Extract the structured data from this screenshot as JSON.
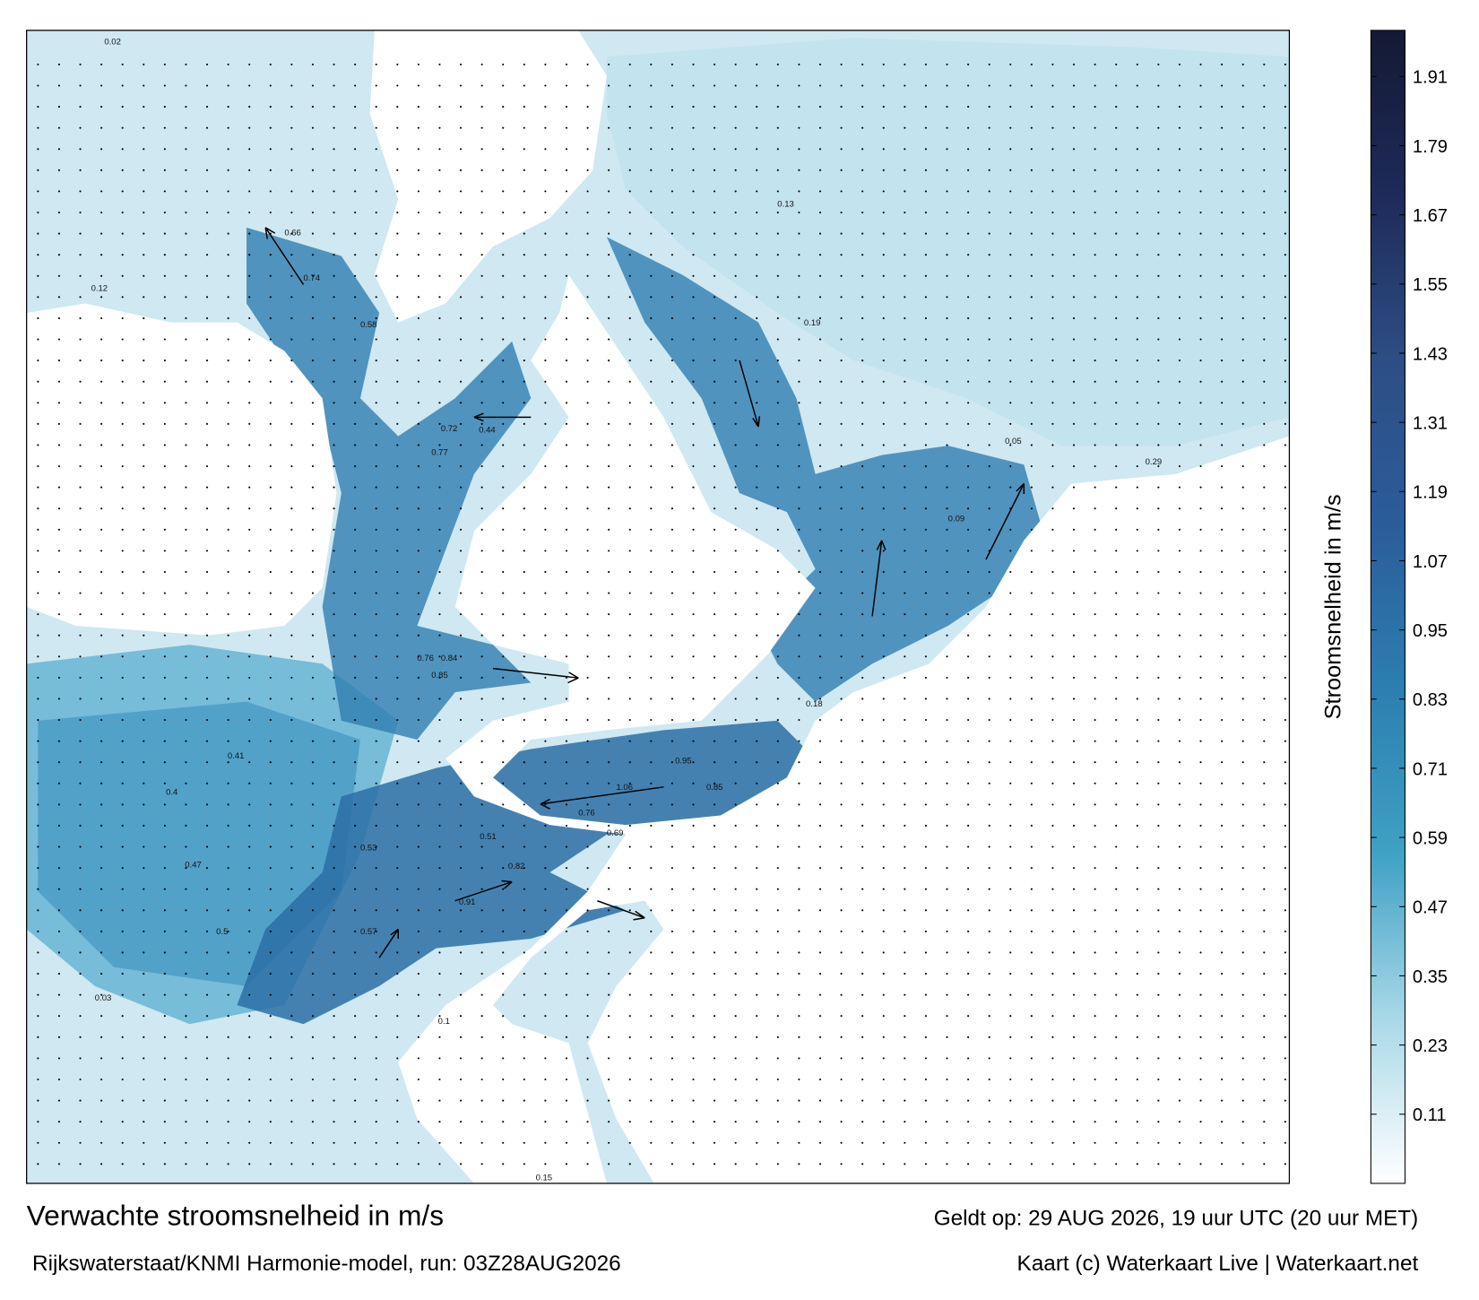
{
  "title": "Verwachte stroomsnelheid in m/s",
  "subtitle": "Rijkswaterstaat/KNMI Harmonie-model, run: 03Z28AUG2026",
  "valid_time": "Geldt op: 29 AUG 2026, 19 uur UTC (20 uur MET)",
  "credit": "Kaart (c) Waterkaart Live | Waterkaart.net",
  "colorbar": {
    "label": "Stroomsnelheid in m/s",
    "range": [
      -0.01,
      1.99
    ],
    "ticks": [
      0.11,
      0.23,
      0.35,
      0.47,
      0.59,
      0.71,
      0.83,
      0.95,
      1.07,
      1.19,
      1.31,
      1.43,
      1.55,
      1.67,
      1.79,
      1.91
    ],
    "colors": [
      "#ffffff",
      "#a9d8e8",
      "#3fa1c4",
      "#2c7fb0",
      "#2b5c9a",
      "#2d4e84",
      "#1e2a5a",
      "#141a33"
    ]
  },
  "map_labels": [
    0.02,
    0.12,
    0.66,
    0.74,
    0.58,
    0.72,
    0.77,
    0.44,
    0.85,
    0.76,
    0.84,
    0.53,
    0.41,
    0.57,
    0.82,
    0.69,
    0.85,
    1.06,
    0.95,
    0.91,
    0.76,
    0.4,
    0.47,
    0.5,
    0.51,
    0.03,
    0.15,
    0.1,
    0.19,
    0.09,
    0.18,
    0.13,
    0.05,
    0.29
  ]
}
